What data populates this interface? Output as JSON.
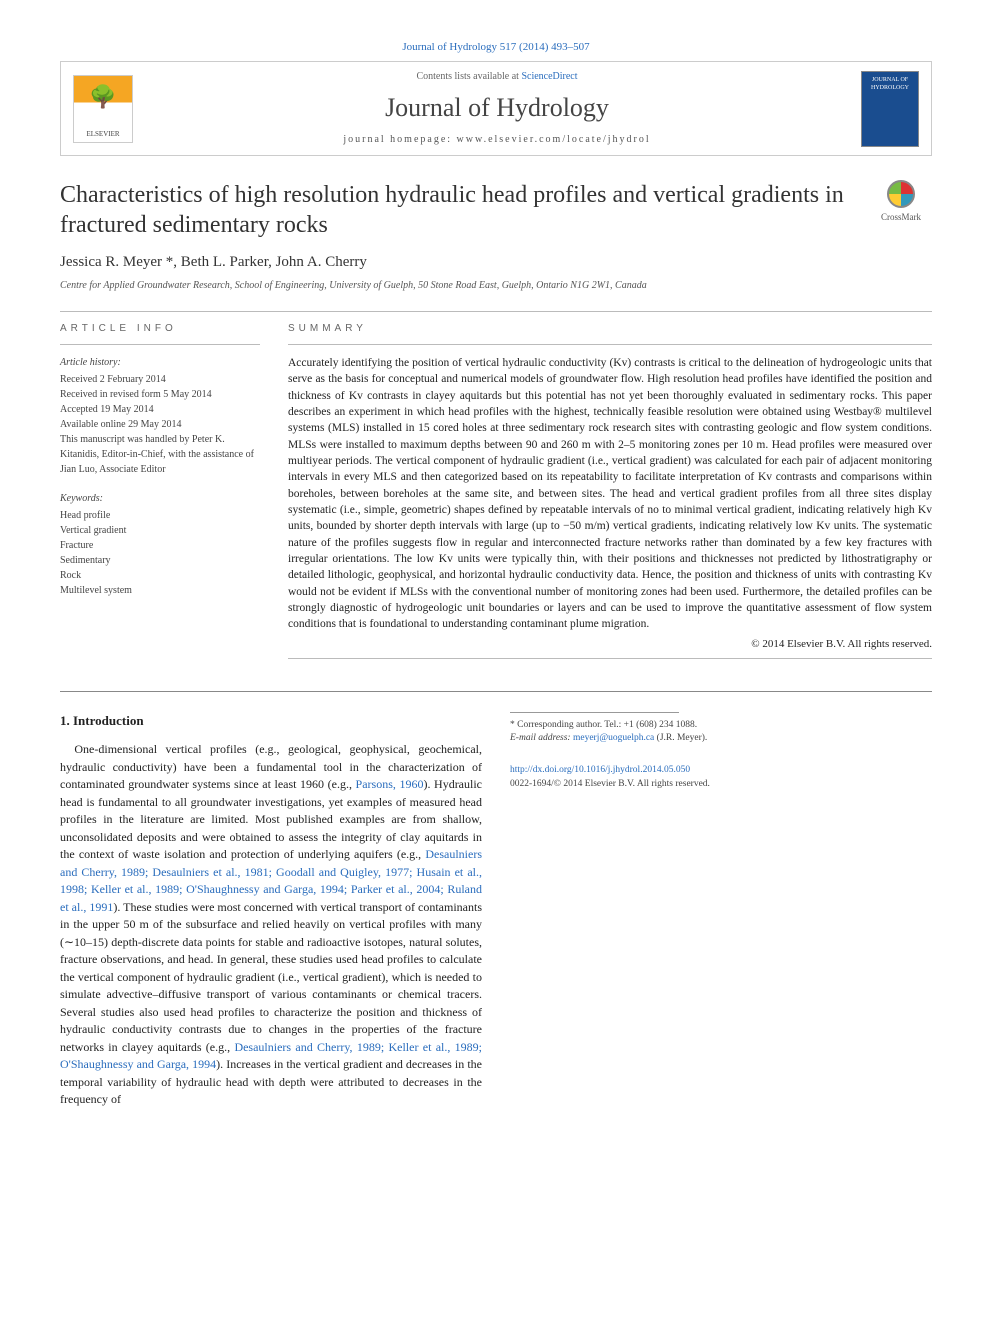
{
  "header": {
    "citation": "Journal of Hydrology 517 (2014) 493–507",
    "contents_prefix": "Contents lists available at ",
    "contents_link": "ScienceDirect",
    "journal_name": "Journal of Hydrology",
    "homepage_prefix": "journal homepage: ",
    "homepage_url": "www.elsevier.com/locate/jhydrol",
    "elsevier_label": "ELSEVIER",
    "cover_text": "JOURNAL OF HYDROLOGY"
  },
  "article": {
    "title": "Characteristics of high resolution hydraulic head profiles and vertical gradients in fractured sedimentary rocks",
    "crossmark_label": "CrossMark",
    "authors": "Jessica R. Meyer *, Beth L. Parker, John A. Cherry",
    "affiliation": "Centre for Applied Groundwater Research, School of Engineering, University of Guelph, 50 Stone Road East, Guelph, Ontario N1G 2W1, Canada"
  },
  "info": {
    "heading": "ARTICLE INFO",
    "history_label": "Article history:",
    "history": [
      "Received 2 February 2014",
      "Received in revised form 5 May 2014",
      "Accepted 19 May 2014",
      "Available online 29 May 2014",
      "This manuscript was handled by Peter K. Kitanidis, Editor-in-Chief, with the assistance of Jian Luo, Associate Editor"
    ],
    "keywords_label": "Keywords:",
    "keywords": [
      "Head profile",
      "Vertical gradient",
      "Fracture",
      "Sedimentary",
      "Rock",
      "Multilevel system"
    ]
  },
  "summary": {
    "heading": "SUMMARY",
    "text": "Accurately identifying the position of vertical hydraulic conductivity (Kv) contrasts is critical to the delineation of hydrogeologic units that serve as the basis for conceptual and numerical models of groundwater flow. High resolution head profiles have identified the position and thickness of Kv contrasts in clayey aquitards but this potential has not yet been thoroughly evaluated in sedimentary rocks. This paper describes an experiment in which head profiles with the highest, technically feasible resolution were obtained using Westbay® multilevel systems (MLS) installed in 15 cored holes at three sedimentary rock research sites with contrasting geologic and flow system conditions. MLSs were installed to maximum depths between 90 and 260 m with 2–5 monitoring zones per 10 m. Head profiles were measured over multiyear periods. The vertical component of hydraulic gradient (i.e., vertical gradient) was calculated for each pair of adjacent monitoring intervals in every MLS and then categorized based on its repeatability to facilitate interpretation of Kv contrasts and comparisons within boreholes, between boreholes at the same site, and between sites. The head and vertical gradient profiles from all three sites display systematic (i.e., simple, geometric) shapes defined by repeatable intervals of no to minimal vertical gradient, indicating relatively high Kv units, bounded by shorter depth intervals with large (up to −50 m/m) vertical gradients, indicating relatively low Kv units. The systematic nature of the profiles suggests flow in regular and interconnected fracture networks rather than dominated by a few key fractures with irregular orientations. The low Kv units were typically thin, with their positions and thicknesses not predicted by lithostratigraphy or detailed lithologic, geophysical, and horizontal hydraulic conductivity data. Hence, the position and thickness of units with contrasting Kv would not be evident if MLSs with the conventional number of monitoring zones had been used. Furthermore, the detailed profiles can be strongly diagnostic of hydrogeologic unit boundaries or layers and can be used to improve the quantitative assessment of flow system conditions that is foundational to understanding contaminant plume migration.",
    "copyright": "© 2014 Elsevier B.V. All rights reserved."
  },
  "body": {
    "section_heading": "1. Introduction",
    "col1_plain1": "One-dimensional vertical profiles (e.g., geological, geophysical, geochemical, hydraulic conductivity) have been a fundamental tool in the characterization of contaminated groundwater systems since at least 1960 (e.g., ",
    "col1_cite1": "Parsons, 1960",
    "col1_plain2": "). Hydraulic head is fundamental to all groundwater investigations, yet examples of measured head profiles in the literature are limited. Most published examples are from shallow, unconsolidated deposits and were obtained to assess the integrity of clay aquitards in the context of waste isolation and protection of underlying aquifers (e.g., ",
    "col1_cite2": "Desaulniers and Cherry, 1989; Desaulniers et al., 1981; Goodall and Quigley, 1977; Husain et al., 1998; Keller et al., 1989;",
    "col2_cite1": "O'Shaughnessy and Garga, 1994; Parker et al., 2004; Ruland et al., 1991",
    "col2_plain1": "). These studies were most concerned with vertical transport of contaminants in the upper 50 m of the subsurface and relied heavily on vertical profiles with many (∼10–15) depth-discrete data points for stable and radioactive isotopes, natural solutes, fracture observations, and head. In general, these studies used head profiles to calculate the vertical component of hydraulic gradient (i.e., vertical gradient), which is needed to simulate advective–diffusive transport of various contaminants or chemical tracers. Several studies also used head profiles to characterize the position and thickness of hydraulic conductivity contrasts due to changes in the properties of the fracture networks in clayey aquitards (e.g., ",
    "col2_cite2": "Desaulniers and Cherry, 1989; Keller et al., 1989; O'Shaughnessy and Garga, 1994",
    "col2_plain2": "). Increases in the vertical gradient and decreases in the temporal variability of hydraulic head with depth were attributed to decreases in the frequency of"
  },
  "footnote": {
    "corr": "* Corresponding author. Tel.: +1 (608) 234 1088.",
    "email_label": "E-mail address: ",
    "email": "meyerj@uoguelph.ca",
    "email_suffix": " (J.R. Meyer)."
  },
  "footer": {
    "doi": "http://dx.doi.org/10.1016/j.jhydrol.2014.05.050",
    "issn_line": "0022-1694/© 2014 Elsevier B.V. All rights reserved."
  },
  "colors": {
    "link": "#2a6dbd",
    "text": "#222222",
    "muted": "#666666",
    "rule": "#bbbbbb"
  }
}
